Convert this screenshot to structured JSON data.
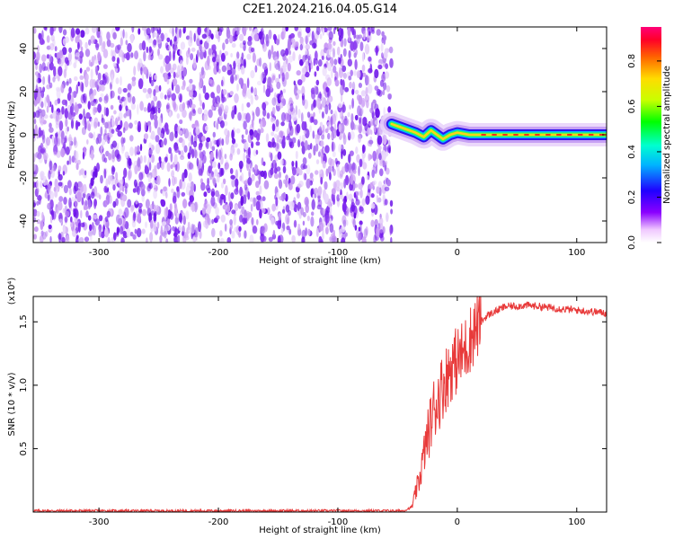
{
  "figure_title": "C2E1.2024.216.04.05.G14",
  "chart_data": [
    {
      "type": "heatmap",
      "xlabel": "Height of straight line (km)",
      "ylabel": "Frequency (Hz)",
      "xlim": [
        -355,
        125
      ],
      "ylim": [
        -50,
        50
      ],
      "xticks": [
        -300,
        -200,
        -100,
        0,
        100
      ],
      "xtick_labels": [
        "-300",
        "-200",
        "-100",
        "0",
        "100"
      ],
      "yticks": [
        -40,
        -20,
        0,
        20,
        40
      ],
      "ytick_labels": [
        "-40",
        "-20",
        "0",
        "20",
        "40"
      ],
      "noise_region_x": [
        -355,
        -55
      ],
      "signal_track": [
        {
          "x": -55,
          "f": 5
        },
        {
          "x": -45,
          "f": 3
        },
        {
          "x": -35,
          "f": 1
        },
        {
          "x": -28,
          "f": -1
        },
        {
          "x": -22,
          "f": 2
        },
        {
          "x": -17,
          "f": 0
        },
        {
          "x": -12,
          "f": -2
        },
        {
          "x": -6,
          "f": 0
        },
        {
          "x": 0,
          "f": 1
        },
        {
          "x": 10,
          "f": 0
        },
        {
          "x": 30,
          "f": 0
        },
        {
          "x": 60,
          "f": 0
        },
        {
          "x": 125,
          "f": 0
        }
      ],
      "colorbar": {
        "label": "Normalized spectral amplitude",
        "range": [
          0,
          0.95
        ],
        "ticks": [
          0.0,
          0.2,
          0.4,
          0.6,
          0.8
        ],
        "tick_labels": [
          "0.0",
          "0.2",
          "0.4",
          "0.6",
          "0.8"
        ]
      },
      "grid": false
    },
    {
      "type": "line",
      "xlabel": "Height of straight line (km)",
      "ylabel": "SNR (10 * v/v)",
      "y_scale_note": "(x10⁴)",
      "xlim": [
        -355,
        125
      ],
      "ylim": [
        0,
        1.7
      ],
      "xticks": [
        -300,
        -200,
        -100,
        0,
        100
      ],
      "xtick_labels": [
        "-300",
        "-200",
        "-100",
        "0",
        "100"
      ],
      "yticks": [
        0.5,
        1.0,
        1.5
      ],
      "ytick_labels": [
        "0.5",
        "1.0",
        "1.5"
      ],
      "line_color": "#e83a3a",
      "series": [
        {
          "values_unit": "x10^4",
          "points": [
            {
              "x": -355,
              "y": 0.01
            },
            {
              "x": -100,
              "y": 0.01
            },
            {
              "x": -45,
              "y": 0.01
            },
            {
              "x": -38,
              "y": 0.04
            },
            {
              "x": -32,
              "y": 0.25
            },
            {
              "x": -26,
              "y": 0.55
            },
            {
              "x": -20,
              "y": 0.8
            },
            {
              "x": -12,
              "y": 1.0
            },
            {
              "x": -5,
              "y": 1.15
            },
            {
              "x": 5,
              "y": 1.25
            },
            {
              "x": 15,
              "y": 1.45
            },
            {
              "x": 25,
              "y": 1.55
            },
            {
              "x": 40,
              "y": 1.62
            },
            {
              "x": 60,
              "y": 1.63
            },
            {
              "x": 90,
              "y": 1.6
            },
            {
              "x": 125,
              "y": 1.57
            }
          ]
        }
      ],
      "grid": false
    }
  ]
}
